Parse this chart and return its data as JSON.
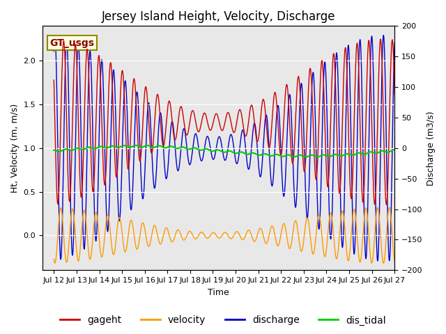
{
  "title": "Jersey Island Height, Velocity, Discharge",
  "xlabel": "Time",
  "ylabel_left": "Ht, Velocity (m, m/s)",
  "ylabel_right": "Discharge (m3/s)",
  "ylim_left": [
    -0.4,
    2.4
  ],
  "ylim_right": [
    -200,
    200
  ],
  "xlim_start": 11.5,
  "xlim_end": 27.0,
  "xtick_labels": [
    "Jul 12",
    "Jul 13",
    "Jul 14",
    "Jul 15",
    "Jul 16",
    "Jul 17",
    "Jul 18",
    "Jul 19",
    "Jul 20",
    "Jul 21",
    "Jul 22",
    "Jul 23",
    "Jul 24",
    "Jul 25",
    "Jul 26",
    "Jul 27"
  ],
  "xtick_positions": [
    12,
    13,
    14,
    15,
    16,
    17,
    18,
    19,
    20,
    21,
    22,
    23,
    24,
    25,
    26,
    27
  ],
  "annotation_text": "GT_usgs",
  "bg_color": "#ffffff",
  "plot_bg_color": "#e8e8e8",
  "legend_labels": [
    "gageht",
    "velocity",
    "discharge",
    "dis_tidal"
  ],
  "legend_colors": [
    "#cc0000",
    "#ff9900",
    "#0000cc",
    "#00cc00"
  ],
  "gageht_color": "#cc0000",
  "velocity_color": "#ff9900",
  "discharge_color": "#0000cc",
  "dis_tidal_color": "#00cc00",
  "title_fontsize": 12,
  "axis_fontsize": 9,
  "tick_fontsize": 8,
  "legend_fontsize": 10
}
